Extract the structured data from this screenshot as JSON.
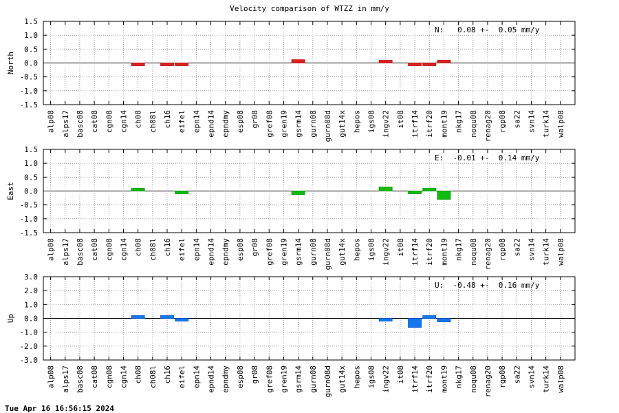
{
  "title": "Velocity comparison of WTZZ in mm/y",
  "timestamp": "Tue Apr 16 16:56:15 2024",
  "chart_data": [
    {
      "type": "bar",
      "ylabel": "North",
      "ylim": [
        -1.5,
        1.5
      ],
      "yticks": [
        "1.5",
        "1.0",
        "0.5",
        "0.0",
        "-0.5",
        "-1.0",
        "-1.5"
      ],
      "annotation": "N:   0.08 +-  0.05 mm/y",
      "color": "#dd2222",
      "grid": true,
      "categories": [
        "alp08",
        "alps17",
        "basc08",
        "cat08",
        "cgn08",
        "cgn14",
        "ch08",
        "ch08l",
        "ch16",
        "eifel",
        "epn14",
        "epnd14",
        "epndmy",
        "esp08",
        "gr08",
        "gref08",
        "gren19",
        "gsrm14",
        "gurn08",
        "gurn08d",
        "gut14x",
        "hepos",
        "igs08",
        "ingv22",
        "it08",
        "itrf14",
        "itrf20",
        "mont19",
        "nkg17",
        "noqu08",
        "renag20",
        "rgp08",
        "sa22",
        "svn14",
        "turk14",
        "walp08"
      ],
      "values": [
        0,
        0,
        0,
        0,
        0,
        0,
        -0.1,
        0,
        -0.02,
        -0.02,
        0,
        0,
        0,
        0,
        0,
        0,
        0,
        0.12,
        0,
        0,
        0,
        0,
        0,
        0.04,
        0,
        -0.06,
        -0.03,
        0.06,
        0,
        0,
        0,
        0,
        0,
        0,
        0,
        0
      ]
    },
    {
      "type": "bar",
      "ylabel": "East",
      "ylim": [
        -1.5,
        1.5
      ],
      "yticks": [
        "1.5",
        "1.0",
        "0.5",
        "0.0",
        "-0.5",
        "-1.0",
        "-1.5"
      ],
      "annotation": "E:  -0.01 +-  0.14 mm/y",
      "color": "#11bb11",
      "grid": true,
      "categories": [
        "alp08",
        "alps17",
        "basc08",
        "cat08",
        "cgn08",
        "cgn14",
        "ch08",
        "ch08l",
        "ch16",
        "eifel",
        "epn14",
        "epnd14",
        "epndmy",
        "esp08",
        "gr08",
        "gref08",
        "gren19",
        "gsrm14",
        "gurn08",
        "gurn08d",
        "gut14x",
        "hepos",
        "igs08",
        "ingv22",
        "it08",
        "itrf14",
        "itrf20",
        "mont19",
        "nkg17",
        "noqu08",
        "renag20",
        "rgp08",
        "sa22",
        "svn14",
        "turk14",
        "walp08"
      ],
      "values": [
        0,
        0,
        0,
        0,
        0,
        0,
        0.1,
        0,
        0,
        -0.1,
        0,
        0,
        0,
        0,
        0,
        0,
        0,
        -0.13,
        0,
        0,
        0,
        0,
        0,
        0.14,
        0,
        -0.08,
        0.07,
        -0.3,
        0,
        0,
        0,
        0,
        0,
        0,
        0,
        0
      ]
    },
    {
      "type": "bar",
      "ylabel": "Up",
      "ylim": [
        -3.0,
        3.0
      ],
      "yticks": [
        "3.0",
        "2.0",
        "1.0",
        "0.0",
        "-1.0",
        "-2.0",
        "-3.0"
      ],
      "annotation": "U:  -0.48 +-  0.16 mm/y",
      "color": "#1177ee",
      "grid": true,
      "categories": [
        "alp08",
        "alps17",
        "basc08",
        "cat08",
        "cgn08",
        "cgn14",
        "ch08",
        "ch08l",
        "ch16",
        "eifel",
        "epn14",
        "epnd14",
        "epndmy",
        "esp08",
        "gr08",
        "gref08",
        "gren19",
        "gsrm14",
        "gurn08",
        "gurn08d",
        "gut14x",
        "hepos",
        "igs08",
        "ingv22",
        "it08",
        "itrf14",
        "itrf20",
        "mont19",
        "nkg17",
        "noqu08",
        "renag20",
        "rgp08",
        "sa22",
        "svn14",
        "turk14",
        "walp08"
      ],
      "values": [
        0,
        0,
        0,
        0,
        0,
        0,
        0.15,
        0,
        0.1,
        -0.06,
        0,
        0,
        0,
        0,
        0,
        0,
        0,
        0,
        0,
        0,
        0,
        0,
        0,
        -0.05,
        0,
        -0.65,
        0.16,
        -0.25,
        0,
        0,
        0,
        0,
        0,
        0,
        0,
        0
      ]
    }
  ]
}
